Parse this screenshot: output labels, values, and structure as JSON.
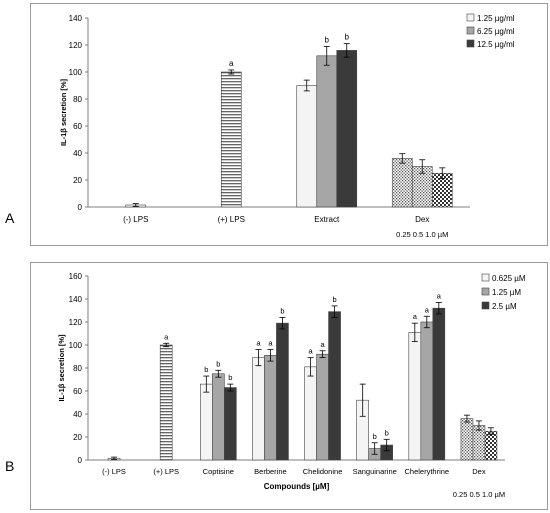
{
  "panel_labels": [
    "A",
    "B"
  ],
  "colors": {
    "light": "#f4f4f4",
    "mid": "#a6a6a6",
    "dark": "#3a3a3a",
    "error": "#000000",
    "axis": "#7f7f7f"
  },
  "chart_data": [
    {
      "type": "bar",
      "ylabel": "IL-1β secretion [%]",
      "xlabel": "",
      "ylim": [
        0,
        140
      ],
      "yticks": [
        0,
        20,
        40,
        60,
        80,
        100,
        120,
        140
      ],
      "grid": false,
      "legend_position": "top-right",
      "legend": [
        "1.25 µg/ml",
        "6.25 µg/ml",
        "12.5 µg/ml"
      ],
      "dex_note": "0.25  0.5  1.0 µM",
      "groups": [
        {
          "label": "(-) LPS",
          "bars": [
            {
              "value": 1.5,
              "error": 1,
              "fill": "light",
              "letter": ""
            }
          ]
        },
        {
          "label": "(+) LPS",
          "bars": [
            {
              "value": 100,
              "error": 1.5,
              "fill": "hstripes",
              "letter": "a"
            }
          ]
        },
        {
          "label": "Extract",
          "bars": [
            {
              "value": 90,
              "error": 4,
              "fill": "light",
              "letter": ""
            },
            {
              "value": 112,
              "error": 7,
              "fill": "mid",
              "letter": "b"
            },
            {
              "value": 116,
              "error": 5,
              "fill": "dark",
              "letter": "b"
            }
          ]
        },
        {
          "label": "Dex",
          "bars": [
            {
              "value": 36,
              "error": 3.5,
              "fill": "dots",
              "letter": ""
            },
            {
              "value": 30,
              "error": 5,
              "fill": "dots",
              "letter": ""
            },
            {
              "value": 25,
              "error": 4,
              "fill": "checks",
              "letter": ""
            }
          ]
        }
      ]
    },
    {
      "type": "bar",
      "ylabel": "IL-1β secretion [%]",
      "xlabel": "Compounds [µM]",
      "ylim": [
        0,
        160
      ],
      "yticks": [
        0,
        20,
        40,
        60,
        80,
        100,
        120,
        140,
        160
      ],
      "grid": false,
      "legend_position": "top-right",
      "legend": [
        "0.625 µM",
        "1.25 µM",
        "2.5 µM"
      ],
      "dex_note": "0.25  0.5  1.0 µM",
      "groups": [
        {
          "label": "(-) LPS",
          "bars": [
            {
              "value": 1.5,
              "error": 1,
              "fill": "light",
              "letter": ""
            }
          ]
        },
        {
          "label": "(+) LPS",
          "bars": [
            {
              "value": 100,
              "error": 1.5,
              "fill": "hstripes",
              "letter": "a"
            }
          ]
        },
        {
          "label": "Coptisine",
          "bars": [
            {
              "value": 66,
              "error": 7,
              "fill": "light",
              "letter": "b"
            },
            {
              "value": 75,
              "error": 3,
              "fill": "mid",
              "letter": "b"
            },
            {
              "value": 63,
              "error": 3,
              "fill": "dark",
              "letter": "b"
            }
          ]
        },
        {
          "label": "Berberine",
          "bars": [
            {
              "value": 89,
              "error": 7,
              "fill": "light",
              "letter": "a"
            },
            {
              "value": 91,
              "error": 5,
              "fill": "mid",
              "letter": "a"
            },
            {
              "value": 119,
              "error": 5,
              "fill": "dark",
              "letter": "b"
            }
          ]
        },
        {
          "label": "Chelidonine",
          "bars": [
            {
              "value": 81,
              "error": 8,
              "fill": "light",
              "letter": "a"
            },
            {
              "value": 92,
              "error": 3,
              "fill": "mid",
              "letter": "a"
            },
            {
              "value": 129,
              "error": 5,
              "fill": "dark",
              "letter": "b"
            }
          ]
        },
        {
          "label": "Sanguinarine",
          "bars": [
            {
              "value": 52,
              "error": 14,
              "fill": "light",
              "letter": ""
            },
            {
              "value": 10,
              "error": 5,
              "fill": "mid",
              "letter": "b"
            },
            {
              "value": 13,
              "error": 5,
              "fill": "dark",
              "letter": "b"
            }
          ]
        },
        {
          "label": "Chelerythrine",
          "bars": [
            {
              "value": 111,
              "error": 8,
              "fill": "light",
              "letter": "a"
            },
            {
              "value": 120,
              "error": 5,
              "fill": "mid",
              "letter": "a"
            },
            {
              "value": 132,
              "error": 5,
              "fill": "dark",
              "letter": "a"
            }
          ]
        },
        {
          "label": "Dex",
          "bars": [
            {
              "value": 36,
              "error": 3,
              "fill": "dots",
              "letter": ""
            },
            {
              "value": 30,
              "error": 4,
              "fill": "dots",
              "letter": ""
            },
            {
              "value": 25,
              "error": 3,
              "fill": "checks",
              "letter": ""
            }
          ]
        }
      ]
    }
  ]
}
